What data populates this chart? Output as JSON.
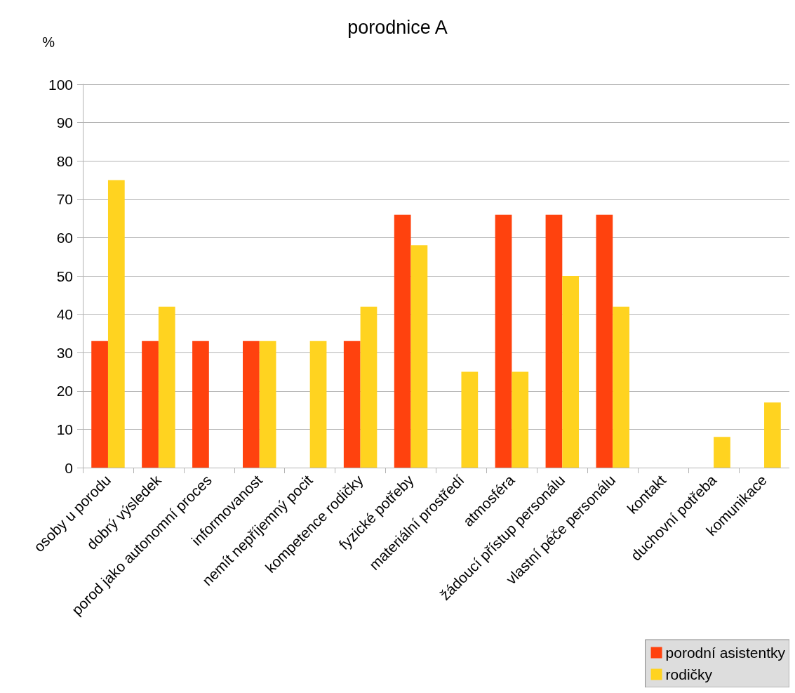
{
  "chart_data": {
    "type": "bar",
    "title": "porodnice A",
    "ylabel": "%",
    "categories": [
      "osoby u porodu",
      "dobrý výsledek",
      "porod jako autonomní proces",
      "informovanost",
      "nemít nepříjemný pocit",
      "kompetence rodičky",
      "fyzické potřeby",
      "materiální prostředí",
      "atmosféra",
      "žádoucí přístup personálu",
      "vlastní péče personálu",
      "kontakt",
      "duchovní potřeba",
      "komunikace"
    ],
    "series": [
      {
        "name": "porodní asistentky",
        "color": "#ff420e",
        "values": [
          33,
          33,
          33,
          33,
          0,
          33,
          66,
          0,
          66,
          66,
          66,
          0,
          0,
          0
        ]
      },
      {
        "name": "rodičky",
        "color": "#ffd320",
        "values": [
          75,
          42,
          0,
          33,
          33,
          42,
          58,
          25,
          25,
          50,
          42,
          0,
          8,
          17
        ]
      }
    ],
    "ylim": [
      0,
      100
    ],
    "yticks": [
      0,
      10,
      20,
      30,
      40,
      50,
      60,
      70,
      80,
      90,
      100
    ],
    "grid": "y",
    "legend": "bottom right"
  }
}
